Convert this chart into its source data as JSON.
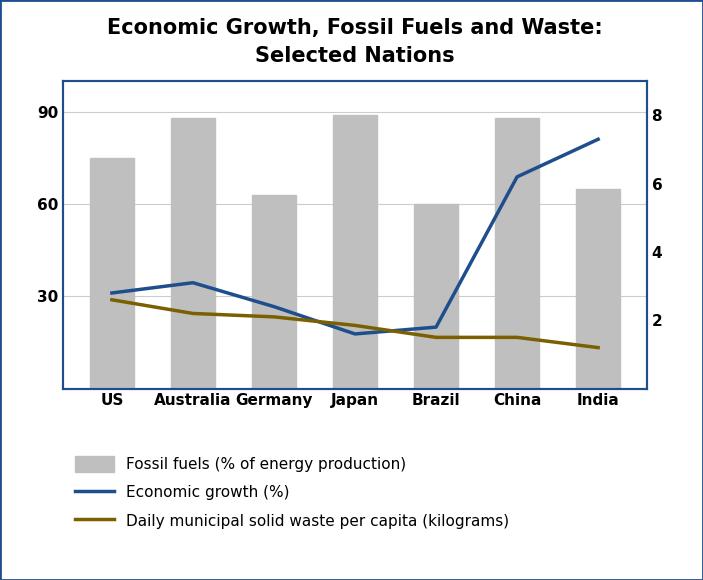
{
  "title": "Economic Growth, Fossil Fuels and Waste:\nSelected Nations",
  "categories": [
    "US",
    "Australia",
    "Germany",
    "Japan",
    "Brazil",
    "China",
    "India"
  ],
  "fossil_fuels": [
    75,
    88,
    63,
    89,
    60,
    88,
    65
  ],
  "economic_growth": [
    2.8,
    3.1,
    2.4,
    1.6,
    1.8,
    6.2,
    7.3
  ],
  "waste": [
    2.6,
    2.2,
    2.1,
    1.85,
    1.5,
    1.5,
    1.2
  ],
  "bar_color": "#bfbfbf",
  "bar_edge_color": "#bfbfbf",
  "line1_color": "#1f4e8c",
  "line2_color": "#7a6000",
  "left_ylim": [
    0,
    100
  ],
  "left_yticks": [
    30,
    60,
    90
  ],
  "right_ylim": [
    0,
    9
  ],
  "right_yticks": [
    2,
    4,
    6,
    8
  ],
  "legend_fossil": "Fossil fuels (% of energy production)",
  "legend_growth": "Economic growth (%)",
  "legend_waste": "Daily municipal solid waste per capita (kilograms)",
  "title_fontsize": 15,
  "tick_fontsize": 11,
  "legend_fontsize": 11,
  "figure_bg": "#ffffff",
  "axes_bg": "#ffffff",
  "border_color": "#1f4e8c",
  "grid_color": "#cccccc"
}
